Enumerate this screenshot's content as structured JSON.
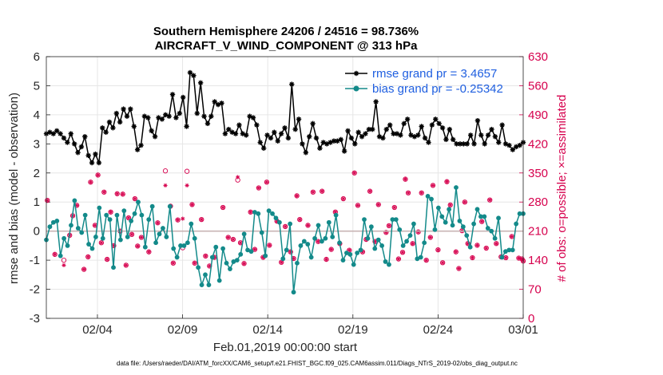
{
  "chart_data": {
    "type": "line",
    "title": "Southern Hemisphere 24206 / 24516 = 98.736%",
    "subtitle": "AIRCRAFT_V_WIND_COMPONENT @ 313 hPa",
    "xlabel": "Feb.01,2019 00:00:00 start",
    "ylabel_left": "rmse and bias (model - observation)",
    "ylabel_right": "# of obs: o=possible; ×=assimilated",
    "xticks": [
      "02/04",
      "02/09",
      "02/14",
      "02/19",
      "02/24",
      "03/01"
    ],
    "xtick_days": [
      3,
      8,
      13,
      18,
      23,
      28
    ],
    "xlim": [
      0,
      28
    ],
    "yticks_left": [
      "-3",
      "-2",
      "-1",
      "0",
      "1",
      "2",
      "3",
      "4",
      "5",
      "6"
    ],
    "ylim_left": [
      -3,
      6
    ],
    "yticks_right": [
      "0",
      "70",
      "140",
      "210",
      "280",
      "350",
      "420",
      "490",
      "560",
      "630"
    ],
    "ylim_right": [
      0,
      630
    ],
    "grid": true,
    "legend_position": "top-right",
    "footer": "data file: /Users/raeder/DAI/ATM_forcXX/CAM6_setup/f.e21.FHIST_BGC.f09_025.CAM6assim.011/Diags_NTrS_2019-02/obs_diag_output.nc",
    "colors": {
      "rmse": "#000000",
      "bias": "#138a8a",
      "obs": "#d6004d",
      "zero": "#c8b4b4",
      "legend": "#1f5fe0",
      "right_axis": "#d6004d"
    },
    "series": [
      {
        "name": "rmse grand pr = 3.4657",
        "values": [
          3.35,
          3.4,
          3.35,
          3.45,
          3.35,
          3.2,
          3.05,
          3.35,
          3.0,
          2.7,
          2.9,
          3.25,
          2.6,
          2.35,
          2.65,
          2.35,
          3.55,
          3.4,
          3.75,
          3.55,
          4.05,
          3.75,
          4.2,
          3.95,
          4.2,
          3.6,
          2.8,
          2.95,
          3.95,
          3.9,
          3.45,
          3.25,
          3.9,
          3.85,
          4.0,
          3.95,
          4.7,
          3.9,
          4.05,
          4.6,
          3.6,
          5.45,
          5.35,
          4.05,
          5.1,
          3.95,
          3.7,
          3.95,
          4.45,
          4.35,
          4.4,
          3.35,
          3.5,
          3.4,
          3.35,
          3.65,
          3.35,
          3.3,
          3.95,
          3.9,
          3.65,
          3.05,
          2.85,
          3.3,
          3.2,
          3.4,
          3.1,
          3.35,
          3.55,
          3.2,
          5.05,
          3.5,
          3.85,
          3.0,
          2.7,
          3.25,
          3.7,
          3.2,
          2.85,
          3.05,
          3.0,
          3.05,
          3.1,
          3.1,
          3.15,
          2.75,
          3.45,
          3.2,
          3.0,
          3.4,
          3.25,
          3.35,
          3.5,
          3.5,
          4.45,
          3.25,
          3.2,
          3.5,
          3.65,
          3.35,
          3.35,
          3.3,
          3.7,
          3.85,
          3.3,
          3.25,
          3.3,
          3.6,
          3.2,
          3.05,
          3.65,
          3.85,
          3.7,
          3.55,
          3.15,
          3.5,
          3.15,
          3.0,
          3.0,
          3.0,
          3.0,
          3.3,
          3.0,
          3.8,
          3.3,
          3.0,
          3.3,
          3.5,
          3.25,
          3.05,
          3.65,
          3.0,
          2.95,
          2.8,
          2.9,
          2.95,
          3.05
        ]
      },
      {
        "name": "bias grand pr = -0.25342",
        "values": [
          -0.3,
          0.15,
          0.3,
          0.35,
          -0.85,
          -0.25,
          -0.5,
          0.2,
          1.05,
          0.1,
          -0.05,
          0.55,
          -0.45,
          -0.6,
          -0.2,
          0.8,
          -0.25,
          0.55,
          0.4,
          -1.25,
          0.55,
          -0.3,
          0.7,
          -0.2,
          0.35,
          0.6,
          1.0,
          0.55,
          -0.55,
          0.4,
          0.85,
          -0.4,
          -0.1,
          0.1,
          -0.2,
          0.85,
          -0.6,
          -0.9,
          -0.5,
          -0.5,
          -0.4,
          0.25,
          -0.25,
          -1.25,
          -1.85,
          -1.5,
          -1.85,
          -0.9,
          -0.55,
          -1.7,
          -0.6,
          -1.1,
          -1.3,
          -1.05,
          -1.0,
          -0.8,
          -0.1,
          -0.65,
          -0.7,
          0.65,
          0.6,
          -0.05,
          -0.85,
          0.7,
          0.6,
          0.45,
          0.3,
          -0.95,
          -0.65,
          0.25,
          -2.1,
          -1.1,
          -0.5,
          -0.35,
          -0.45,
          -0.9,
          -0.25,
          0.2,
          -0.35,
          -0.25,
          0.3,
          -0.2,
          0.55,
          -0.4,
          -1.0,
          -0.75,
          -0.8,
          -1.15,
          -0.75,
          -0.65,
          0.4,
          -0.25,
          0.15,
          -0.6,
          -0.3,
          -0.5,
          -1.05,
          -1.15,
          0.4,
          0.4,
          0.05,
          -0.5,
          -0.35,
          -0.15,
          0.25,
          -0.95,
          -0.9,
          -0.4,
          1.2,
          1.1,
          0.05,
          0.8,
          0.5,
          0.3,
          0.75,
          0.2,
          1.5,
          0.35,
          0.15,
          -0.15,
          -0.55,
          0.25,
          0.75,
          0.5,
          0.5,
          0.1,
          0.0,
          -0.25,
          0.45,
          -0.9,
          -0.7,
          -0.65,
          -0.65,
          0.25,
          0.6,
          0.6
        ]
      },
      {
        "name": "obs possible",
        "marker": "circle",
        "values": [
          [
            0.06,
            284
          ],
          [
            0.5,
            154
          ],
          [
            1.03,
            140
          ],
          [
            1.37,
            200
          ],
          [
            1.55,
            247
          ],
          [
            1.79,
            272
          ],
          [
            2.21,
            118
          ],
          [
            2.45,
            148
          ],
          [
            2.6,
            328
          ],
          [
            2.86,
            224
          ],
          [
            3.03,
            345
          ],
          [
            3.23,
            182
          ],
          [
            3.39,
            304
          ],
          [
            3.57,
            142
          ],
          [
            3.78,
            256
          ],
          [
            3.96,
            175
          ],
          [
            4.16,
            300
          ],
          [
            4.34,
            210
          ],
          [
            4.49,
            299
          ],
          [
            4.68,
            128
          ],
          [
            4.83,
            242
          ],
          [
            5.02,
            202
          ],
          [
            5.2,
            288
          ],
          [
            5.36,
            174
          ],
          [
            5.58,
            195
          ],
          [
            6.02,
            160
          ],
          [
            6.54,
            230
          ],
          [
            6.99,
            355
          ],
          [
            7.29,
            270
          ],
          [
            7.45,
            133
          ],
          [
            7.72,
            237
          ],
          [
            8.01,
            170
          ],
          [
            8.26,
            354
          ],
          [
            8.56,
            274
          ],
          [
            8.71,
            133
          ],
          [
            9.11,
            238
          ],
          [
            9.35,
            150
          ],
          [
            9.58,
            126
          ],
          [
            9.87,
            147
          ],
          [
            10.37,
            267
          ],
          [
            10.68,
            195
          ],
          [
            10.97,
            190
          ],
          [
            11.24,
            333
          ],
          [
            11.4,
            182
          ],
          [
            11.61,
            132
          ],
          [
            11.99,
            256
          ],
          [
            12.24,
            166
          ],
          [
            12.47,
            314
          ],
          [
            12.73,
            147
          ],
          [
            12.94,
            328
          ],
          [
            13.1,
            176
          ],
          [
            13.54,
            234
          ],
          [
            13.8,
            135
          ],
          [
            14.03,
            221
          ],
          [
            14.34,
            160
          ],
          [
            14.52,
            144
          ],
          [
            14.71,
            295
          ],
          [
            14.88,
            238
          ],
          [
            15.36,
            224
          ],
          [
            15.66,
            304
          ],
          [
            15.96,
            185
          ],
          [
            16.19,
            306
          ],
          [
            16.44,
            142
          ],
          [
            16.73,
            166
          ],
          [
            16.97,
            256
          ],
          [
            17.23,
            180
          ],
          [
            17.44,
            288
          ],
          [
            17.79,
            164
          ],
          [
            18.09,
            350
          ],
          [
            18.29,
            272
          ],
          [
            18.57,
            160
          ],
          [
            18.78,
            190
          ],
          [
            19.0,
            306
          ],
          [
            19.3,
            185
          ],
          [
            19.5,
            274
          ],
          [
            19.95,
            207
          ],
          [
            20.12,
            223
          ],
          [
            20.44,
            267
          ],
          [
            20.68,
            143
          ],
          [
            20.92,
            159
          ],
          [
            21.08,
            335
          ],
          [
            21.25,
            302
          ],
          [
            21.51,
            180
          ],
          [
            21.84,
            208
          ],
          [
            22.03,
            302
          ],
          [
            22.31,
            140
          ],
          [
            22.55,
            195
          ],
          [
            22.7,
            320
          ],
          [
            23.0,
            165
          ],
          [
            23.27,
            134
          ],
          [
            23.52,
            329
          ],
          [
            23.72,
            273
          ],
          [
            24.05,
            160
          ],
          [
            24.22,
            120
          ],
          [
            24.41,
            211
          ],
          [
            24.57,
            280
          ],
          [
            24.75,
            180
          ],
          [
            25.02,
            146
          ],
          [
            25.3,
            176
          ],
          [
            25.57,
            233
          ],
          [
            25.83,
            169
          ],
          [
            26.04,
            285
          ],
          [
            26.42,
            180
          ],
          [
            26.7,
            148
          ],
          [
            26.98,
            146
          ],
          [
            27.33,
            197
          ],
          [
            27.74,
            145
          ],
          [
            27.93,
            143
          ],
          [
            28.0,
            138
          ]
        ]
      },
      {
        "name": "obs assimilated",
        "marker": "asterisk",
        "values": [
          [
            0.06,
            284
          ],
          [
            0.5,
            154
          ],
          [
            1.03,
            128
          ],
          [
            1.37,
            200
          ],
          [
            1.55,
            247
          ],
          [
            1.79,
            272
          ],
          [
            2.21,
            118
          ],
          [
            2.45,
            148
          ],
          [
            2.6,
            328
          ],
          [
            2.86,
            224
          ],
          [
            3.03,
            345
          ],
          [
            3.23,
            182
          ],
          [
            3.39,
            304
          ],
          [
            3.57,
            142
          ],
          [
            3.78,
            256
          ],
          [
            3.96,
            175
          ],
          [
            4.16,
            300
          ],
          [
            4.34,
            210
          ],
          [
            4.49,
            299
          ],
          [
            4.68,
            128
          ],
          [
            4.83,
            242
          ],
          [
            5.02,
            202
          ],
          [
            5.2,
            288
          ],
          [
            5.36,
            174
          ],
          [
            5.58,
            195
          ],
          [
            6.02,
            160
          ],
          [
            6.54,
            230
          ],
          [
            6.99,
            320
          ],
          [
            7.29,
            270
          ],
          [
            7.45,
            133
          ],
          [
            7.72,
            237
          ],
          [
            8.01,
            240
          ],
          [
            8.26,
            320
          ],
          [
            8.56,
            274
          ],
          [
            8.71,
            133
          ],
          [
            9.11,
            238
          ],
          [
            9.35,
            150
          ],
          [
            9.58,
            126
          ],
          [
            9.87,
            147
          ],
          [
            10.37,
            267
          ],
          [
            10.68,
            195
          ],
          [
            10.97,
            190
          ],
          [
            11.24,
            340
          ],
          [
            11.4,
            182
          ],
          [
            11.61,
            132
          ],
          [
            11.99,
            256
          ],
          [
            12.24,
            166
          ],
          [
            12.47,
            314
          ],
          [
            12.73,
            147
          ],
          [
            12.94,
            328
          ],
          [
            13.1,
            176
          ],
          [
            13.54,
            234
          ],
          [
            13.8,
            135
          ],
          [
            14.03,
            221
          ],
          [
            14.34,
            160
          ],
          [
            14.52,
            144
          ],
          [
            14.71,
            295
          ],
          [
            14.88,
            238
          ],
          [
            15.36,
            224
          ],
          [
            15.66,
            304
          ],
          [
            15.96,
            185
          ],
          [
            16.19,
            306
          ],
          [
            16.44,
            142
          ],
          [
            16.73,
            166
          ],
          [
            16.97,
            256
          ],
          [
            17.23,
            180
          ],
          [
            17.44,
            288
          ],
          [
            17.79,
            164
          ],
          [
            18.09,
            350
          ],
          [
            18.29,
            272
          ],
          [
            18.57,
            160
          ],
          [
            18.78,
            190
          ],
          [
            19.0,
            306
          ],
          [
            19.3,
            185
          ],
          [
            19.5,
            274
          ],
          [
            19.95,
            207
          ],
          [
            20.12,
            223
          ],
          [
            20.44,
            267
          ],
          [
            20.68,
            143
          ],
          [
            20.92,
            159
          ],
          [
            21.08,
            335
          ],
          [
            21.25,
            302
          ],
          [
            21.51,
            180
          ],
          [
            21.84,
            208
          ],
          [
            22.03,
            302
          ],
          [
            22.31,
            140
          ],
          [
            22.55,
            195
          ],
          [
            22.7,
            320
          ],
          [
            23.0,
            165
          ],
          [
            23.27,
            134
          ],
          [
            23.52,
            329
          ],
          [
            23.72,
            273
          ],
          [
            24.05,
            160
          ],
          [
            24.22,
            120
          ],
          [
            24.41,
            211
          ],
          [
            24.57,
            280
          ],
          [
            24.75,
            180
          ],
          [
            25.02,
            146
          ],
          [
            25.3,
            176
          ],
          [
            25.57,
            233
          ],
          [
            25.83,
            169
          ],
          [
            26.04,
            285
          ],
          [
            26.42,
            180
          ],
          [
            26.7,
            148
          ],
          [
            26.98,
            146
          ],
          [
            27.33,
            197
          ],
          [
            27.74,
            145
          ],
          [
            27.93,
            143
          ],
          [
            28.0,
            138
          ]
        ]
      }
    ]
  }
}
